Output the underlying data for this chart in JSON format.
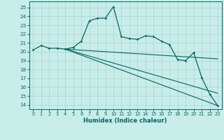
{
  "xlabel": "Humidex (Indice chaleur)",
  "background_color": "#c8ece8",
  "grid_color": "#b0d8d4",
  "line_color": "#006666",
  "xlim": [
    -0.5,
    23.5
  ],
  "ylim": [
    13.5,
    25.7
  ],
  "yticks": [
    14,
    15,
    16,
    17,
    18,
    19,
    20,
    21,
    22,
    23,
    24,
    25
  ],
  "xticks": [
    0,
    1,
    2,
    3,
    4,
    5,
    6,
    7,
    8,
    9,
    10,
    11,
    12,
    13,
    14,
    15,
    16,
    17,
    18,
    19,
    20,
    21,
    22,
    23
  ],
  "main_line": {
    "x": [
      0,
      1,
      2,
      3,
      4,
      5,
      6,
      7,
      8,
      9,
      10,
      11,
      12,
      13,
      14,
      15,
      16,
      17,
      18,
      19,
      20,
      21,
      22,
      23
    ],
    "y": [
      20.2,
      20.7,
      20.4,
      20.4,
      20.3,
      20.5,
      21.2,
      23.5,
      23.8,
      23.8,
      25.1,
      21.7,
      21.5,
      21.4,
      21.8,
      21.7,
      21.2,
      20.8,
      19.1,
      19.0,
      19.9,
      17.1,
      15.2,
      13.9
    ]
  },
  "fan_lines": [
    {
      "x": [
        4,
        23
      ],
      "y": [
        20.3,
        19.2
      ]
    },
    {
      "x": [
        4,
        23
      ],
      "y": [
        20.3,
        15.3
      ]
    },
    {
      "x": [
        4,
        23
      ],
      "y": [
        20.3,
        13.9
      ]
    }
  ]
}
